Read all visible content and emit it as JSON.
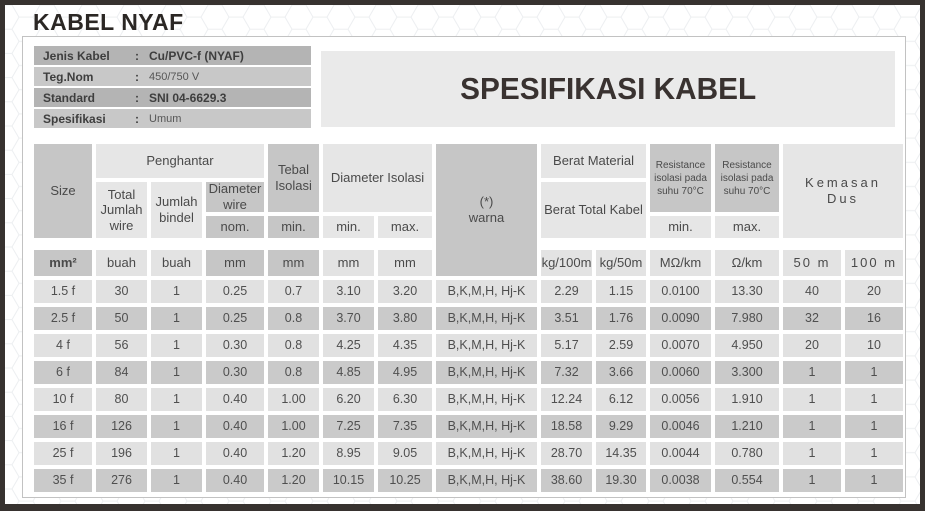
{
  "page_title": "KABEL NYAF",
  "spec_header": "SPESIFIKASI KABEL",
  "info": {
    "rows": [
      {
        "label": "Jenis Kabel",
        "colon": ":",
        "value": "Cu/PVC-f (NYAF)"
      },
      {
        "label": "Teg.Nom",
        "colon": ":",
        "value": "450/750 V"
      },
      {
        "label": "Standard",
        "colon": ":",
        "value": "SNI 04-6629.3"
      },
      {
        "label": "Spesifikasi",
        "colon": ":",
        "value": "Umum"
      }
    ]
  },
  "table": {
    "headers": {
      "size": "Size",
      "penghantar": "Penghantar",
      "total_jumlah_wire": "Total Jumlah wire",
      "jumlah_bindel": "Jumlah bindel",
      "diameter_wire": "Diameter wire",
      "nom": "nom.",
      "tebal_isolasi": "Tebal Isolasi",
      "min": "min.",
      "max": "max.",
      "diameter_isolasi": "Diameter Isolasi",
      "warna_mark": "(*)",
      "warna_label": "warna",
      "berat_material": "Berat Material",
      "berat_total_kabel": "Berat Total Kabel",
      "resistance_min_title": "Resistance isolasi pada suhu 70°C",
      "resistance_max_title": "Resistance isolasi pada suhu 70°C",
      "kemasan": "Kemasan",
      "dus": "Dus"
    },
    "units": {
      "size": "mm²",
      "buah": "buah",
      "mm": "mm",
      "kg100": "kg/100m",
      "kg50": "kg/50m",
      "mohm_km": "MΩ/km",
      "ohm_km": "Ω/km",
      "dus50": "50 m",
      "dus100": "100 m"
    },
    "column_keys": [
      "size",
      "total_wire",
      "bindel",
      "dia_wire_nom",
      "tebal_min",
      "dia_iso_min",
      "dia_iso_max",
      "warna",
      "kg100",
      "kg50",
      "res_min",
      "res_max",
      "dus50",
      "dus100"
    ],
    "rows": [
      {
        "size": "1.5 f",
        "total_wire": "30",
        "bindel": "1",
        "dia_wire_nom": "0.25",
        "tebal_min": "0.7",
        "dia_iso_min": "3.10",
        "dia_iso_max": "3.20",
        "warna": "B,K,M,H, Hj-K",
        "kg100": "2.29",
        "kg50": "1.15",
        "res_min": "0.0100",
        "res_max": "13.30",
        "dus50": "40",
        "dus100": "20"
      },
      {
        "size": "2.5 f",
        "total_wire": "50",
        "bindel": "1",
        "dia_wire_nom": "0.25",
        "tebal_min": "0.8",
        "dia_iso_min": "3.70",
        "dia_iso_max": "3.80",
        "warna": "B,K,M,H, Hj-K",
        "kg100": "3.51",
        "kg50": "1.76",
        "res_min": "0.0090",
        "res_max": "7.980",
        "dus50": "32",
        "dus100": "16"
      },
      {
        "size": "4 f",
        "total_wire": "56",
        "bindel": "1",
        "dia_wire_nom": "0.30",
        "tebal_min": "0.8",
        "dia_iso_min": "4.25",
        "dia_iso_max": "4.35",
        "warna": "B,K,M,H, Hj-K",
        "kg100": "5.17",
        "kg50": "2.59",
        "res_min": "0.0070",
        "res_max": "4.950",
        "dus50": "20",
        "dus100": "10"
      },
      {
        "size": "6 f",
        "total_wire": "84",
        "bindel": "1",
        "dia_wire_nom": "0.30",
        "tebal_min": "0.8",
        "dia_iso_min": "4.85",
        "dia_iso_max": "4.95",
        "warna": "B,K,M,H, Hj-K",
        "kg100": "7.32",
        "kg50": "3.66",
        "res_min": "0.0060",
        "res_max": "3.300",
        "dus50": "1",
        "dus100": "1"
      },
      {
        "size": "10 f",
        "total_wire": "80",
        "bindel": "1",
        "dia_wire_nom": "0.40",
        "tebal_min": "1.00",
        "dia_iso_min": "6.20",
        "dia_iso_max": "6.30",
        "warna": "B,K,M,H, Hj-K",
        "kg100": "12.24",
        "kg50": "6.12",
        "res_min": "0.0056",
        "res_max": "1.910",
        "dus50": "1",
        "dus100": "1"
      },
      {
        "size": "16 f",
        "total_wire": "126",
        "bindel": "1",
        "dia_wire_nom": "0.40",
        "tebal_min": "1.00",
        "dia_iso_min": "7.25",
        "dia_iso_max": "7.35",
        "warna": "B,K,M,H, Hj-K",
        "kg100": "18.58",
        "kg50": "9.29",
        "res_min": "0.0046",
        "res_max": "1.210",
        "dus50": "1",
        "dus100": "1"
      },
      {
        "size": "25 f",
        "total_wire": "196",
        "bindel": "1",
        "dia_wire_nom": "0.40",
        "tebal_min": "1.20",
        "dia_iso_min": "8.95",
        "dia_iso_max": "9.05",
        "warna": "B,K,M,H, Hj-K",
        "kg100": "28.70",
        "kg50": "14.35",
        "res_min": "0.0044",
        "res_max": "0.780",
        "dus50": "1",
        "dus100": "1"
      },
      {
        "size": "35 f",
        "total_wire": "276",
        "bindel": "1",
        "dia_wire_nom": "0.40",
        "tebal_min": "1.20",
        "dia_iso_min": "10.15",
        "dia_iso_max": "10.25",
        "warna": "B,K,M,H, Hj-K",
        "kg100": "38.60",
        "kg50": "19.30",
        "res_min": "0.0038",
        "res_max": "0.554",
        "dus50": "1",
        "dus100": "1"
      }
    ]
  },
  "colors": {
    "frame_border": "#37322f",
    "header_dark": "#c6c6c6",
    "header_light": "#e6e6e6",
    "row_light": "#e1e1e1",
    "row_dark": "#cacaca",
    "info_bar_dark": "#b4b4b4",
    "info_bar_light": "#c8c8c8",
    "spec_box": "#eaeaea"
  }
}
